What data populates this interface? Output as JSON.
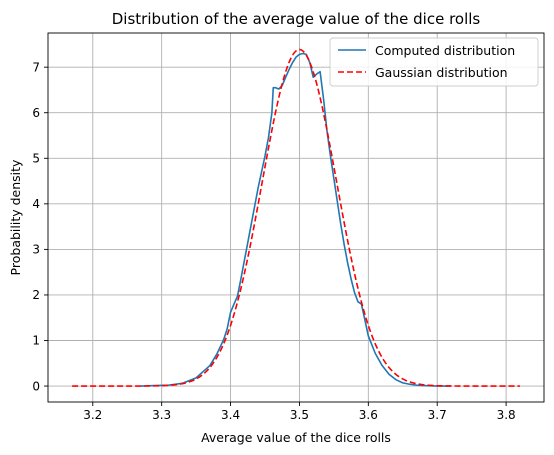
{
  "chart_data": {
    "type": "line",
    "title": "Distribution of the average value of the dice rolls",
    "xlabel": "Average value of the dice rolls",
    "ylabel": "Probability density",
    "xlim": [
      3.135,
      3.855
    ],
    "ylim": [
      -0.35,
      7.75
    ],
    "xticks": [
      3.2,
      3.3,
      3.4,
      3.5,
      3.6,
      3.7,
      3.8
    ],
    "yticks": [
      0,
      1,
      2,
      3,
      4,
      5,
      6,
      7
    ],
    "grid": true,
    "legend_position": "top-right",
    "series": [
      {
        "name": "Computed distribution",
        "color": "#1f77b4",
        "style": "solid",
        "x": [
          3.27,
          3.29,
          3.31,
          3.33,
          3.35,
          3.37,
          3.38,
          3.39,
          3.395,
          3.4,
          3.405,
          3.41,
          3.415,
          3.42,
          3.425,
          3.43,
          3.435,
          3.44,
          3.445,
          3.45,
          3.455,
          3.46,
          3.462,
          3.465,
          3.47,
          3.475,
          3.48,
          3.485,
          3.49,
          3.495,
          3.5,
          3.505,
          3.51,
          3.515,
          3.52,
          3.525,
          3.53,
          3.535,
          3.54,
          3.545,
          3.55,
          3.555,
          3.56,
          3.565,
          3.57,
          3.575,
          3.58,
          3.585,
          3.59,
          3.595,
          3.6,
          3.61,
          3.62,
          3.63,
          3.64,
          3.65,
          3.66,
          3.67,
          3.68,
          3.7,
          3.72
        ],
        "y": [
          0.0,
          0.01,
          0.02,
          0.06,
          0.18,
          0.45,
          0.7,
          1.02,
          1.25,
          1.62,
          1.8,
          1.97,
          2.35,
          2.75,
          3.15,
          3.55,
          3.95,
          4.35,
          4.7,
          5.05,
          5.45,
          6.0,
          6.55,
          6.55,
          6.52,
          6.6,
          6.78,
          6.95,
          7.1,
          7.22,
          7.28,
          7.3,
          7.28,
          7.1,
          6.78,
          6.85,
          6.9,
          6.3,
          5.6,
          5.05,
          4.55,
          4.05,
          3.55,
          3.1,
          2.7,
          2.35,
          2.05,
          1.85,
          1.8,
          1.45,
          1.1,
          0.72,
          0.45,
          0.26,
          0.14,
          0.07,
          0.04,
          0.02,
          0.01,
          0.0,
          0.0
        ]
      },
      {
        "name": "Gaussian distribution",
        "color": "#ff0000",
        "style": "dashed",
        "mean": 3.5,
        "std": 0.054,
        "x_range": [
          3.17,
          3.82
        ]
      }
    ]
  }
}
